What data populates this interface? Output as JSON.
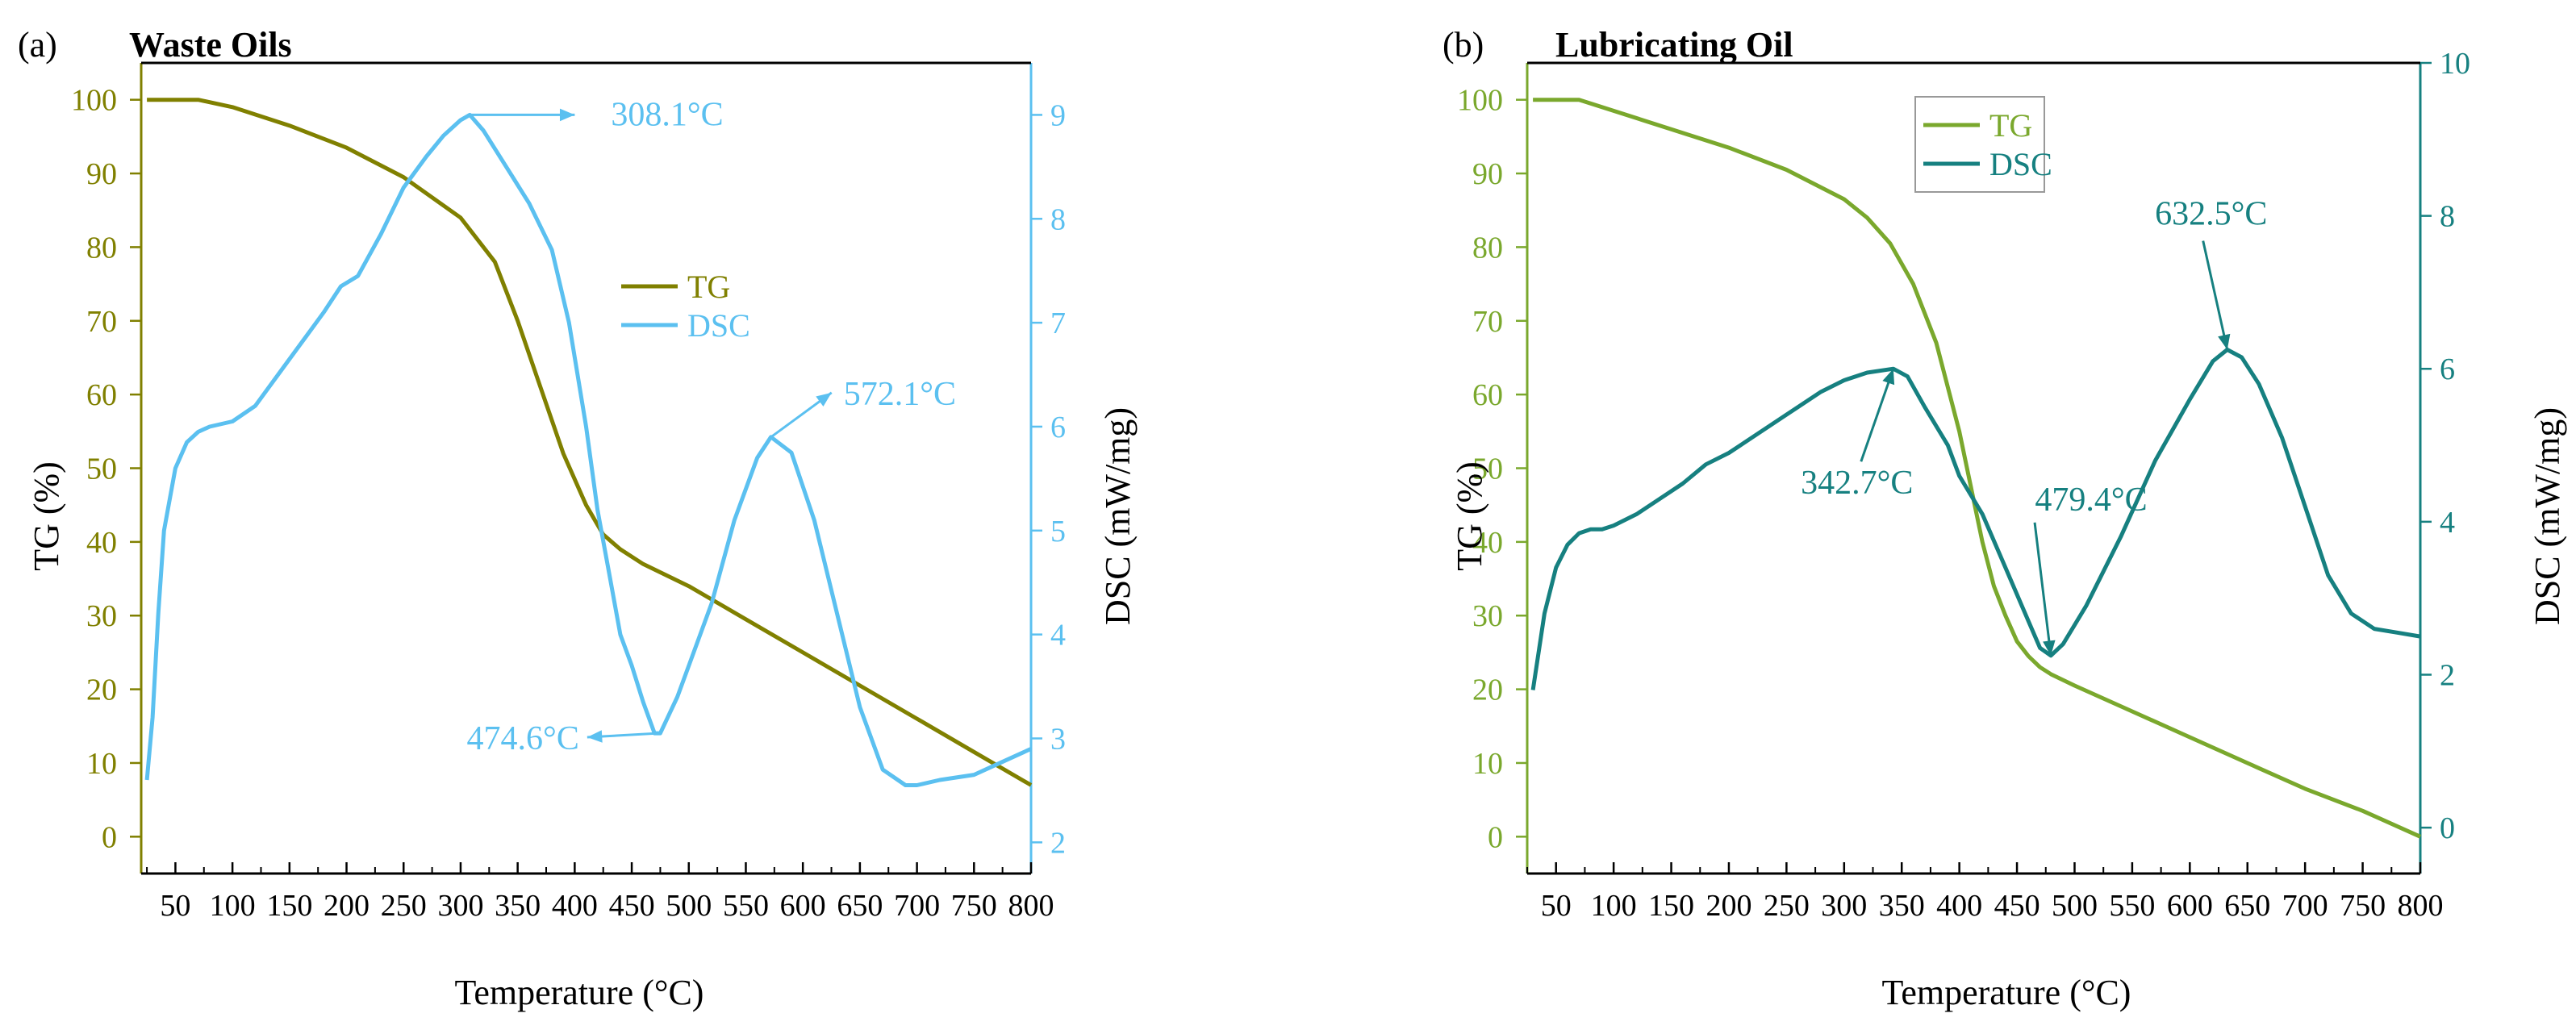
{
  "chart_data": [
    {
      "type": "line",
      "tag": "(a)",
      "title": "Waste Oils",
      "xlabel": "Temperature (°C)",
      "ylabel_left": "TG (%)",
      "ylabel_right": "DSC (mW/mg)",
      "xlim": [
        20,
        800
      ],
      "ylim_left": [
        -5,
        105
      ],
      "ylim_right": [
        1.7,
        9.5
      ],
      "xticks": [
        "50",
        "100",
        "150",
        "200",
        "250",
        "300",
        "350",
        "400",
        "450",
        "500",
        "550",
        "600",
        "650",
        "700",
        "750",
        "800"
      ],
      "yticks_left": [
        "0",
        "10",
        "20",
        "30",
        "40",
        "50",
        "60",
        "70",
        "80",
        "90",
        "100"
      ],
      "yticks_right": [
        "2",
        "3",
        "4",
        "5",
        "6",
        "7",
        "8",
        "9"
      ],
      "colors": {
        "left_axis": "#808000",
        "right_axis": "#5bc0f0",
        "tg": "#808000",
        "dsc": "#5bc0f0"
      },
      "legend_position": "center-right",
      "series": [
        {
          "name": "TG",
          "axis": "left",
          "x": [
            25,
            40,
            70,
            100,
            150,
            200,
            250,
            300,
            330,
            350,
            370,
            390,
            410,
            425,
            440,
            460,
            480,
            500,
            550,
            600,
            650,
            700,
            750,
            800
          ],
          "y": [
            100,
            100,
            100,
            99,
            96.5,
            93.5,
            89.5,
            84,
            78,
            70,
            61,
            52,
            45,
            41,
            39,
            37,
            35.5,
            34,
            29.5,
            25,
            20.5,
            16,
            11.5,
            7
          ]
        },
        {
          "name": "DSC",
          "axis": "right",
          "x": [
            25,
            30,
            35,
            40,
            50,
            60,
            70,
            80,
            100,
            120,
            140,
            160,
            180,
            195,
            210,
            230,
            250,
            270,
            285,
            300,
            308,
            320,
            340,
            360,
            380,
            395,
            410,
            420,
            430,
            440,
            450,
            460,
            470,
            475,
            490,
            500,
            520,
            540,
            560,
            572,
            590,
            610,
            630,
            650,
            670,
            690,
            700,
            720,
            750,
            770,
            790,
            800
          ],
          "y": [
            2.6,
            3.2,
            4.2,
            5.0,
            5.6,
            5.85,
            5.95,
            6.0,
            6.05,
            6.2,
            6.5,
            6.8,
            7.1,
            7.35,
            7.45,
            7.85,
            8.3,
            8.6,
            8.8,
            8.95,
            9.0,
            8.85,
            8.5,
            8.15,
            7.7,
            7.0,
            6.0,
            5.2,
            4.6,
            4.0,
            3.7,
            3.35,
            3.05,
            3.05,
            3.4,
            3.7,
            4.3,
            5.1,
            5.7,
            5.9,
            5.75,
            5.1,
            4.2,
            3.3,
            2.7,
            2.55,
            2.55,
            2.6,
            2.65,
            2.75,
            2.85,
            2.9
          ]
        }
      ],
      "annotations": [
        {
          "text": "308.1°C",
          "x": 308.1,
          "y": 9.0,
          "axis": "right"
        },
        {
          "text": "572.1°C",
          "x": 572.1,
          "y": 5.9,
          "axis": "right"
        },
        {
          "text": "474.6°C",
          "x": 474.6,
          "y": 3.05,
          "axis": "right"
        }
      ]
    },
    {
      "type": "line",
      "tag": "(b)",
      "title": "Lubricating Oil",
      "xlabel": "Temperature (°C)",
      "ylabel_left": "TG (%)",
      "ylabel_right": "DSC (mW/mg)",
      "xlim": [
        25,
        800
      ],
      "ylim_left": [
        -5,
        105
      ],
      "ylim_right": [
        -0.6,
        10
      ],
      "xticks": [
        "50",
        "100",
        "150",
        "200",
        "250",
        "300",
        "350",
        "400",
        "450",
        "500",
        "550",
        "600",
        "650",
        "700",
        "750",
        "800"
      ],
      "yticks_left": [
        "0",
        "10",
        "20",
        "30",
        "40",
        "50",
        "60",
        "70",
        "80",
        "90",
        "100"
      ],
      "yticks_right": [
        "0",
        "2",
        "4",
        "6",
        "8",
        "10"
      ],
      "colors": {
        "left_axis": "#7aa82d",
        "right_axis": "#168080",
        "tg": "#7aa82d",
        "dsc": "#168080"
      },
      "legend_position": "top-center",
      "series": [
        {
          "name": "TG",
          "axis": "left",
          "x": [
            30,
            50,
            70,
            100,
            150,
            200,
            250,
            300,
            320,
            340,
            360,
            380,
            400,
            410,
            420,
            430,
            440,
            450,
            460,
            470,
            480,
            500,
            550,
            600,
            650,
            700,
            750,
            800
          ],
          "y": [
            100,
            100,
            100,
            98.5,
            96,
            93.5,
            90.5,
            86.5,
            84,
            80.5,
            75,
            67,
            55,
            47.5,
            40,
            34,
            30,
            26.5,
            24.5,
            23,
            22,
            20.5,
            17,
            13.5,
            10,
            6.5,
            3.5,
            0
          ]
        },
        {
          "name": "DSC",
          "axis": "right",
          "x": [
            30,
            40,
            50,
            60,
            70,
            80,
            90,
            100,
            120,
            140,
            160,
            180,
            200,
            220,
            250,
            280,
            300,
            320,
            342.7,
            355,
            370,
            390,
            400,
            420,
            440,
            460,
            470,
            479.4,
            490,
            510,
            540,
            570,
            600,
            620,
            632.5,
            645,
            660,
            680,
            700,
            720,
            740,
            760,
            780,
            800
          ],
          "y": [
            1.8,
            2.8,
            3.4,
            3.7,
            3.85,
            3.9,
            3.9,
            3.95,
            4.1,
            4.3,
            4.5,
            4.75,
            4.9,
            5.1,
            5.4,
            5.7,
            5.85,
            5.95,
            6.0,
            5.9,
            5.5,
            5.0,
            4.6,
            4.1,
            3.4,
            2.7,
            2.35,
            2.25,
            2.4,
            2.9,
            3.8,
            4.8,
            5.6,
            6.1,
            6.25,
            6.15,
            5.8,
            5.1,
            4.2,
            3.3,
            2.8,
            2.6,
            2.55,
            2.5
          ]
        }
      ],
      "annotations": [
        {
          "text": "342.7°C",
          "x": 342.7,
          "y": 6.0,
          "axis": "right"
        },
        {
          "text": "479.4°C",
          "x": 479.4,
          "y": 2.25,
          "axis": "right"
        },
        {
          "text": "632.5°C",
          "x": 632.5,
          "y": 6.25,
          "axis": "right"
        }
      ]
    }
  ]
}
